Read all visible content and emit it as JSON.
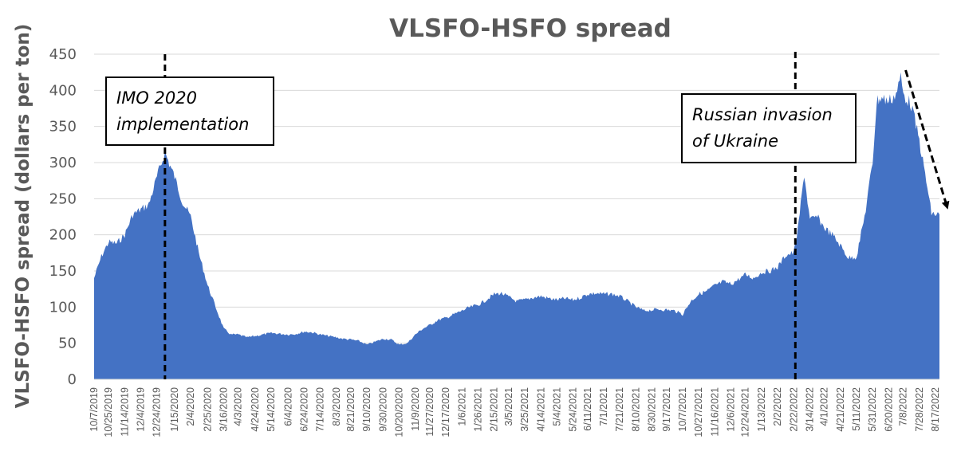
{
  "chart_data": {
    "type": "area",
    "title": "VLSFO-HSFO spread",
    "ylabel": "VLSFO-HSFO spread (dollars per ton)",
    "xlabel": "",
    "ylim": [
      0,
      450
    ],
    "yticks": [
      0,
      50,
      100,
      150,
      200,
      250,
      300,
      350,
      400,
      450
    ],
    "grid": true,
    "color": "#4472C4",
    "x_tick_labels": [
      "10/7/2019",
      "10/25/2019",
      "11/14/2019",
      "12/4/2019",
      "12/24/2019",
      "1/15/2020",
      "2/4/2020",
      "2/25/2020",
      "3/16/2020",
      "4/3/2020",
      "4/24/2020",
      "5/14/2020",
      "6/4/2020",
      "6/24/2020",
      "7/14/2020",
      "8/3/2020",
      "8/21/2020",
      "9/10/2020",
      "9/30/2020",
      "10/20/2020",
      "11/9/2020",
      "11/27/2020",
      "12/17/2020",
      "1/6/2021",
      "1/26/2021",
      "2/15/2021",
      "3/5/2021",
      "3/25/2021",
      "4/14/2021",
      "5/4/2021",
      "5/24/2021",
      "6/11/2021",
      "7/1/2021",
      "7/21/2021",
      "8/10/2021",
      "8/30/2021",
      "9/17/2021",
      "10/7/2021",
      "10/27/2021",
      "11/16/2021",
      "12/6/2021",
      "12/24/2021",
      "1/13/2022",
      "2/2/2022",
      "2/22/2022",
      "3/14/2022",
      "4/1/2022",
      "4/21/2022",
      "5/11/2022",
      "5/31/2022",
      "6/20/2022",
      "7/8/2022",
      "7/28/2022",
      "8/17/2022"
    ],
    "series": [
      {
        "values": [
          {
            "x": "10/7/2019",
            "y": 140
          },
          {
            "x": "10/16/2019",
            "y": 170
          },
          {
            "x": "10/25/2019",
            "y": 190
          },
          {
            "x": "11/4/2019",
            "y": 188
          },
          {
            "x": "11/14/2019",
            "y": 200
          },
          {
            "x": "11/24/2019",
            "y": 228
          },
          {
            "x": "12/4/2019",
            "y": 235
          },
          {
            "x": "12/14/2019",
            "y": 242
          },
          {
            "x": "12/24/2019",
            "y": 280
          },
          {
            "x": "1/3/2020",
            "y": 314
          },
          {
            "x": "1/15/2020",
            "y": 280
          },
          {
            "x": "1/25/2020",
            "y": 245
          },
          {
            "x": "2/4/2020",
            "y": 225
          },
          {
            "x": "2/14/2020",
            "y": 175
          },
          {
            "x": "2/25/2020",
            "y": 130
          },
          {
            "x": "3/6/2020",
            "y": 100
          },
          {
            "x": "3/16/2020",
            "y": 70
          },
          {
            "x": "3/25/2020",
            "y": 62
          },
          {
            "x": "4/3/2020",
            "y": 62
          },
          {
            "x": "4/14/2020",
            "y": 58
          },
          {
            "x": "4/24/2020",
            "y": 60
          },
          {
            "x": "5/4/2020",
            "y": 62
          },
          {
            "x": "5/14/2020",
            "y": 64
          },
          {
            "x": "5/25/2020",
            "y": 63
          },
          {
            "x": "6/4/2020",
            "y": 62
          },
          {
            "x": "6/14/2020",
            "y": 63
          },
          {
            "x": "6/24/2020",
            "y": 66
          },
          {
            "x": "7/4/2020",
            "y": 65
          },
          {
            "x": "7/14/2020",
            "y": 62
          },
          {
            "x": "7/24/2020",
            "y": 60
          },
          {
            "x": "8/3/2020",
            "y": 58
          },
          {
            "x": "8/12/2020",
            "y": 56
          },
          {
            "x": "8/21/2020",
            "y": 55
          },
          {
            "x": "8/31/2020",
            "y": 53
          },
          {
            "x": "9/10/2020",
            "y": 48
          },
          {
            "x": "9/20/2020",
            "y": 52
          },
          {
            "x": "9/30/2020",
            "y": 56
          },
          {
            "x": "10/10/2020",
            "y": 55
          },
          {
            "x": "10/20/2020",
            "y": 48
          },
          {
            "x": "10/30/2020",
            "y": 50
          },
          {
            "x": "11/9/2020",
            "y": 62
          },
          {
            "x": "11/18/2020",
            "y": 70
          },
          {
            "x": "11/27/2020",
            "y": 75
          },
          {
            "x": "12/7/2020",
            "y": 82
          },
          {
            "x": "12/17/2020",
            "y": 85
          },
          {
            "x": "12/27/2020",
            "y": 90
          },
          {
            "x": "1/6/2021",
            "y": 95
          },
          {
            "x": "1/16/2021",
            "y": 100
          },
          {
            "x": "1/26/2021",
            "y": 103
          },
          {
            "x": "2/5/2021",
            "y": 110
          },
          {
            "x": "2/15/2021",
            "y": 118
          },
          {
            "x": "2/24/2021",
            "y": 119
          },
          {
            "x": "3/5/2021",
            "y": 114
          },
          {
            "x": "3/15/2021",
            "y": 108
          },
          {
            "x": "3/25/2021",
            "y": 110
          },
          {
            "x": "4/4/2021",
            "y": 113
          },
          {
            "x": "4/14/2021",
            "y": 115
          },
          {
            "x": "4/24/2021",
            "y": 112
          },
          {
            "x": "5/4/2021",
            "y": 110
          },
          {
            "x": "5/14/2021",
            "y": 112
          },
          {
            "x": "5/24/2021",
            "y": 110
          },
          {
            "x": "6/2/2021",
            "y": 113
          },
          {
            "x": "6/11/2021",
            "y": 118
          },
          {
            "x": "6/21/2021",
            "y": 119
          },
          {
            "x": "7/1/2021",
            "y": 118
          },
          {
            "x": "7/11/2021",
            "y": 118
          },
          {
            "x": "7/21/2021",
            "y": 115
          },
          {
            "x": "7/31/2021",
            "y": 108
          },
          {
            "x": "8/10/2021",
            "y": 100
          },
          {
            "x": "8/20/2021",
            "y": 95
          },
          {
            "x": "8/30/2021",
            "y": 96
          },
          {
            "x": "9/8/2021",
            "y": 97
          },
          {
            "x": "9/17/2021",
            "y": 96
          },
          {
            "x": "9/27/2021",
            "y": 95
          },
          {
            "x": "10/7/2021",
            "y": 90
          },
          {
            "x": "10/17/2021",
            "y": 108
          },
          {
            "x": "10/27/2021",
            "y": 118
          },
          {
            "x": "11/6/2021",
            "y": 122
          },
          {
            "x": "11/16/2021",
            "y": 130
          },
          {
            "x": "11/26/2021",
            "y": 135
          },
          {
            "x": "12/6/2021",
            "y": 132
          },
          {
            "x": "12/15/2021",
            "y": 138
          },
          {
            "x": "12/24/2021",
            "y": 145
          },
          {
            "x": "1/3/2022",
            "y": 140
          },
          {
            "x": "1/13/2022",
            "y": 148
          },
          {
            "x": "1/23/2022",
            "y": 150
          },
          {
            "x": "2/2/2022",
            "y": 155
          },
          {
            "x": "2/12/2022",
            "y": 172
          },
          {
            "x": "2/22/2022",
            "y": 175
          },
          {
            "x": "2/27/2022",
            "y": 205
          },
          {
            "x": "3/4/2022",
            "y": 255
          },
          {
            "x": "3/7/2022",
            "y": 285
          },
          {
            "x": "3/14/2022",
            "y": 220
          },
          {
            "x": "3/23/2022",
            "y": 225
          },
          {
            "x": "4/1/2022",
            "y": 210
          },
          {
            "x": "4/11/2022",
            "y": 200
          },
          {
            "x": "4/21/2022",
            "y": 185
          },
          {
            "x": "5/1/2022",
            "y": 168
          },
          {
            "x": "5/11/2022",
            "y": 170
          },
          {
            "x": "5/21/2022",
            "y": 225
          },
          {
            "x": "5/31/2022",
            "y": 300
          },
          {
            "x": "6/5/2022",
            "y": 385
          },
          {
            "x": "6/10/2022",
            "y": 390
          },
          {
            "x": "6/20/2022",
            "y": 385
          },
          {
            "x": "6/29/2022",
            "y": 395
          },
          {
            "x": "7/5/2022",
            "y": 418
          },
          {
            "x": "7/8/2022",
            "y": 395
          },
          {
            "x": "7/18/2022",
            "y": 380
          },
          {
            "x": "7/28/2022",
            "y": 330
          },
          {
            "x": "8/7/2022",
            "y": 265
          },
          {
            "x": "8/12/2022",
            "y": 230
          },
          {
            "x": "8/17/2022",
            "y": 228
          },
          {
            "x": "8/22/2022",
            "y": 228
          }
        ]
      }
    ],
    "annotations": [
      {
        "text_lines": [
          "IMO 2020",
          "implementation"
        ],
        "marker_x": "1/3/2020",
        "style": "dashed-vertical-line"
      },
      {
        "text_lines": [
          "Russian invasion",
          "of Ukraine"
        ],
        "marker_x": "2/24/2022",
        "style": "dashed-vertical-line"
      }
    ],
    "trend_arrow": {
      "from_x": "7/8/2022",
      "to_x": "8/29/2022",
      "direction": "down",
      "style": "dashed-arrow"
    }
  }
}
